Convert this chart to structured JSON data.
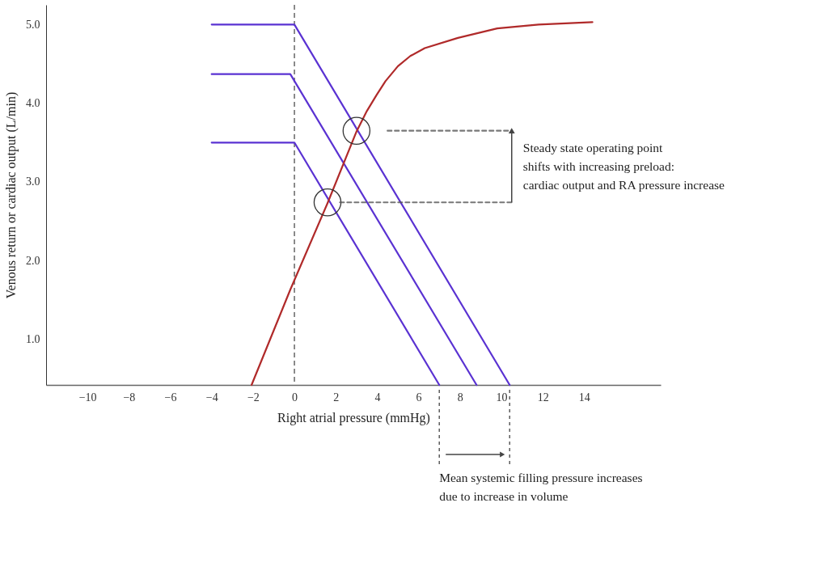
{
  "chart_data": {
    "type": "line",
    "xlabel": "Right atrial pressure (mmHg)",
    "ylabel": "Venous return or cardiac output (L/min)",
    "xlim": [
      -12,
      17.7
    ],
    "ylim": [
      0.42,
      5.25
    ],
    "xticks": [
      -10,
      -8,
      -6,
      -4,
      -2,
      0,
      2,
      4,
      6,
      8,
      10,
      12,
      14
    ],
    "yticks": [
      {
        "value": 1,
        "label": "1.0"
      },
      {
        "value": 2,
        "label": "2.0"
      },
      {
        "value": 3,
        "label": "3.0"
      },
      {
        "value": 4,
        "label": "4.0"
      },
      {
        "value": 5,
        "label": "5.0"
      }
    ],
    "grid": false,
    "series": [
      {
        "color": "#5a32d2",
        "x": [
          -4,
          0,
          10.4
        ],
        "values": [
          5.0,
          5.0,
          0.42
        ]
      },
      {
        "color": "#5a32d2",
        "x": [
          -4,
          -0.2,
          8.8
        ],
        "values": [
          4.37,
          4.37,
          0.42
        ]
      },
      {
        "color": "#5a32d2",
        "x": [
          -4,
          0,
          7.0
        ],
        "values": [
          3.5,
          3.5,
          0.42
        ]
      },
      {
        "color": "#b02a2a",
        "x": [
          -2.07,
          -0.2,
          1.6,
          3.0,
          3.5,
          3.96,
          4.4,
          5.0,
          5.6,
          6.3,
          7.9,
          9.8,
          11.8,
          14.4
        ],
        "values": [
          0.42,
          1.63,
          2.73,
          3.64,
          3.9,
          4.1,
          4.28,
          4.47,
          4.6,
          4.7,
          4.83,
          4.95,
          5.0,
          5.03
        ]
      },
      {
        "type": "scatter",
        "marker": "circle",
        "color": "#333333",
        "x": [
          1.6,
          3.0
        ],
        "values": [
          2.74,
          3.65
        ]
      },
      {
        "line_style": "dashed",
        "color": "#555555",
        "x": [
          4.5,
          10.5
        ],
        "values": [
          3.65,
          3.65
        ]
      },
      {
        "line_style": "dashed",
        "color": "#555555",
        "x": [
          2.2,
          10.5
        ],
        "values": [
          2.74,
          2.74
        ]
      }
    ],
    "ref_lines": [
      {
        "axis": "x",
        "value": 0,
        "line_style": "dashed",
        "color": "#666666"
      }
    ],
    "annotations": [
      {
        "text": "Steady state operating point\nshifts with increasing preload:\ncardiac output and RA pressure increase",
        "x": 10.5,
        "y": 3.65
      },
      "Mean systemic filling pressure increases\ndue to increase in volume"
    ]
  }
}
